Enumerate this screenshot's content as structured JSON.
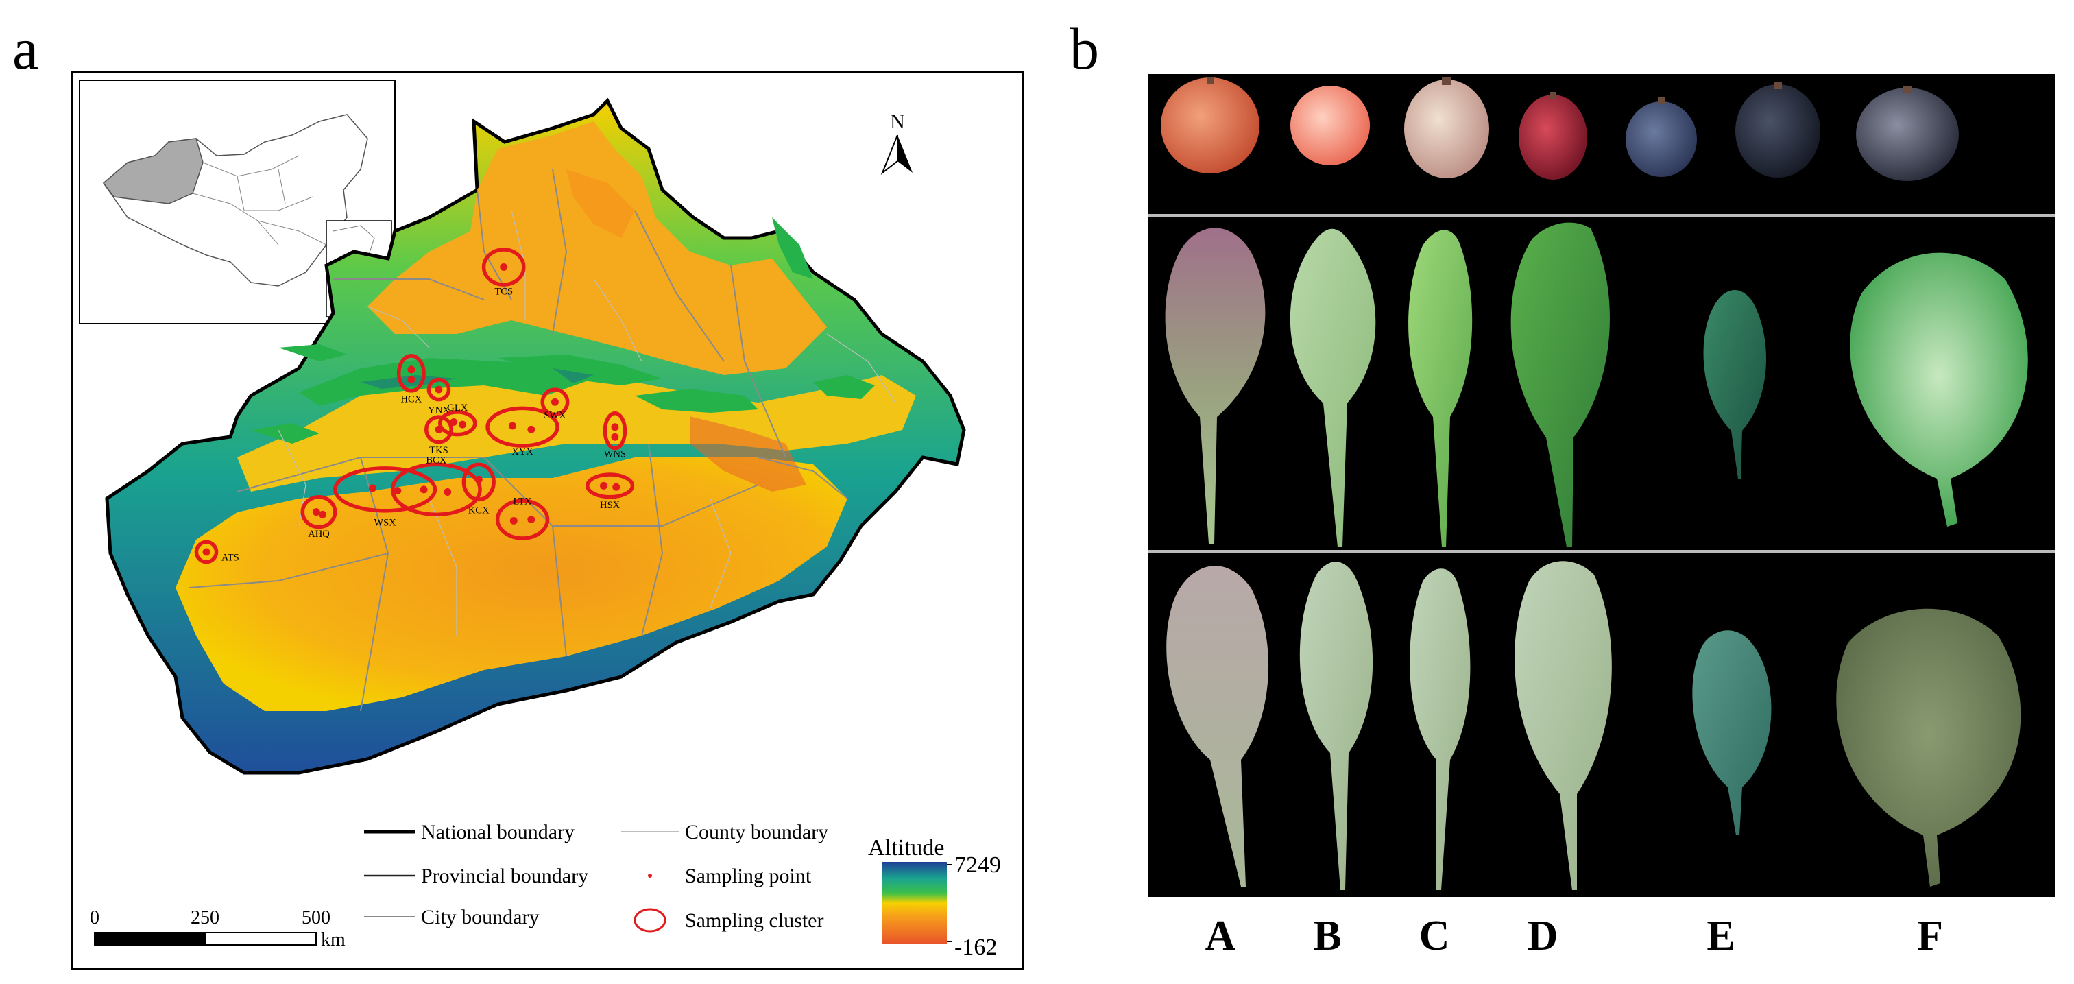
{
  "panels": {
    "a_label": "a",
    "b_label": "b"
  },
  "map": {
    "north_label": "N",
    "clusters": [
      {
        "label": "TCS"
      },
      {
        "label": "HCX"
      },
      {
        "label": "YNX"
      },
      {
        "label": "GLX"
      },
      {
        "label": "TKS"
      },
      {
        "label": "XYX"
      },
      {
        "label": "SWX"
      },
      {
        "label": "WNS"
      },
      {
        "label": "BCX"
      },
      {
        "label": "WSX"
      },
      {
        "label": "KCX"
      },
      {
        "label": "LTX"
      },
      {
        "label": "HSX"
      },
      {
        "label": "AHQ"
      },
      {
        "label": "ATS"
      }
    ],
    "legend": {
      "national": "National boundary",
      "provincial": "Provincial boundary",
      "city": "City boundary",
      "county": "County boundary",
      "sampling_point": "Sampling point",
      "sampling_cluster": "Sampling cluster"
    },
    "altitude": {
      "title": "Altitude",
      "max": "7249",
      "min": "-162"
    },
    "scale": {
      "t0": "0",
      "t1": "250",
      "t2": "500",
      "unit": "km"
    },
    "colors": {
      "low": "#e8522a",
      "mid": "#f5d000",
      "high_green": "#3cc04a",
      "peak": "#1f4fa0",
      "cluster": "#e31a1c"
    }
  },
  "specimens": {
    "labels": [
      "A",
      "B",
      "C",
      "D",
      "E",
      "F"
    ]
  }
}
